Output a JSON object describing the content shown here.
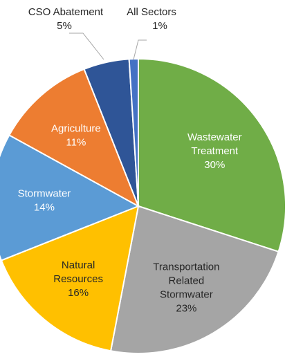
{
  "chart_data": {
    "type": "pie",
    "categories": [
      "Wastewater Treatment",
      "Transportation Related Stormwater",
      "Natural Resources",
      "Stormwater",
      "Agriculture",
      "CSO Abatement",
      "All Sectors"
    ],
    "values": [
      30,
      23,
      16,
      14,
      11,
      5,
      1
    ],
    "value_labels": [
      "30%",
      "23%",
      "16%",
      "14%",
      "11%",
      "5%",
      "1%"
    ],
    "colors": [
      "#70ad47",
      "#a5a5a5",
      "#ffc000",
      "#5b9bd5",
      "#ed7d31",
      "#2f5597",
      "#4472c4"
    ]
  }
}
